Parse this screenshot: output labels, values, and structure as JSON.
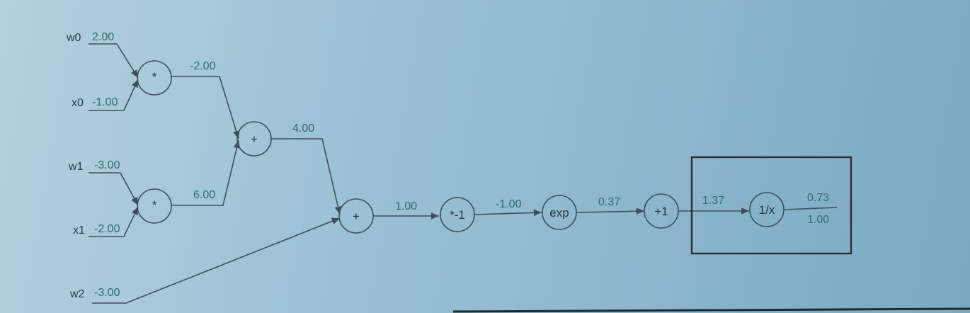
{
  "inputs": {
    "w0": {
      "name": "w0",
      "value": "2.00"
    },
    "x0": {
      "name": "x0",
      "value": "-1.00"
    },
    "w1": {
      "name": "w1",
      "value": "-3.00"
    },
    "x1": {
      "name": "x1",
      "value": "-2.00"
    },
    "w2": {
      "name": "w2",
      "value": "-3.00"
    }
  },
  "nodes": {
    "mul0": {
      "op": "*"
    },
    "mul1": {
      "op": "*"
    },
    "add0": {
      "op": "+"
    },
    "add1": {
      "op": "+"
    },
    "neg": {
      "op": "*-1"
    },
    "exp": {
      "op": "exp"
    },
    "plus1": {
      "op": "+1"
    },
    "recip": {
      "op": "1/x"
    }
  },
  "edges": {
    "mul0_out": "-2.00",
    "mul1_out": "6.00",
    "add0_out": "4.00",
    "add1_out": "1.00",
    "neg_out": "-1.00",
    "exp_out": "0.37",
    "plus1_out": "1.37",
    "recip_out": "0.73",
    "recip_grad": "1.00"
  }
}
